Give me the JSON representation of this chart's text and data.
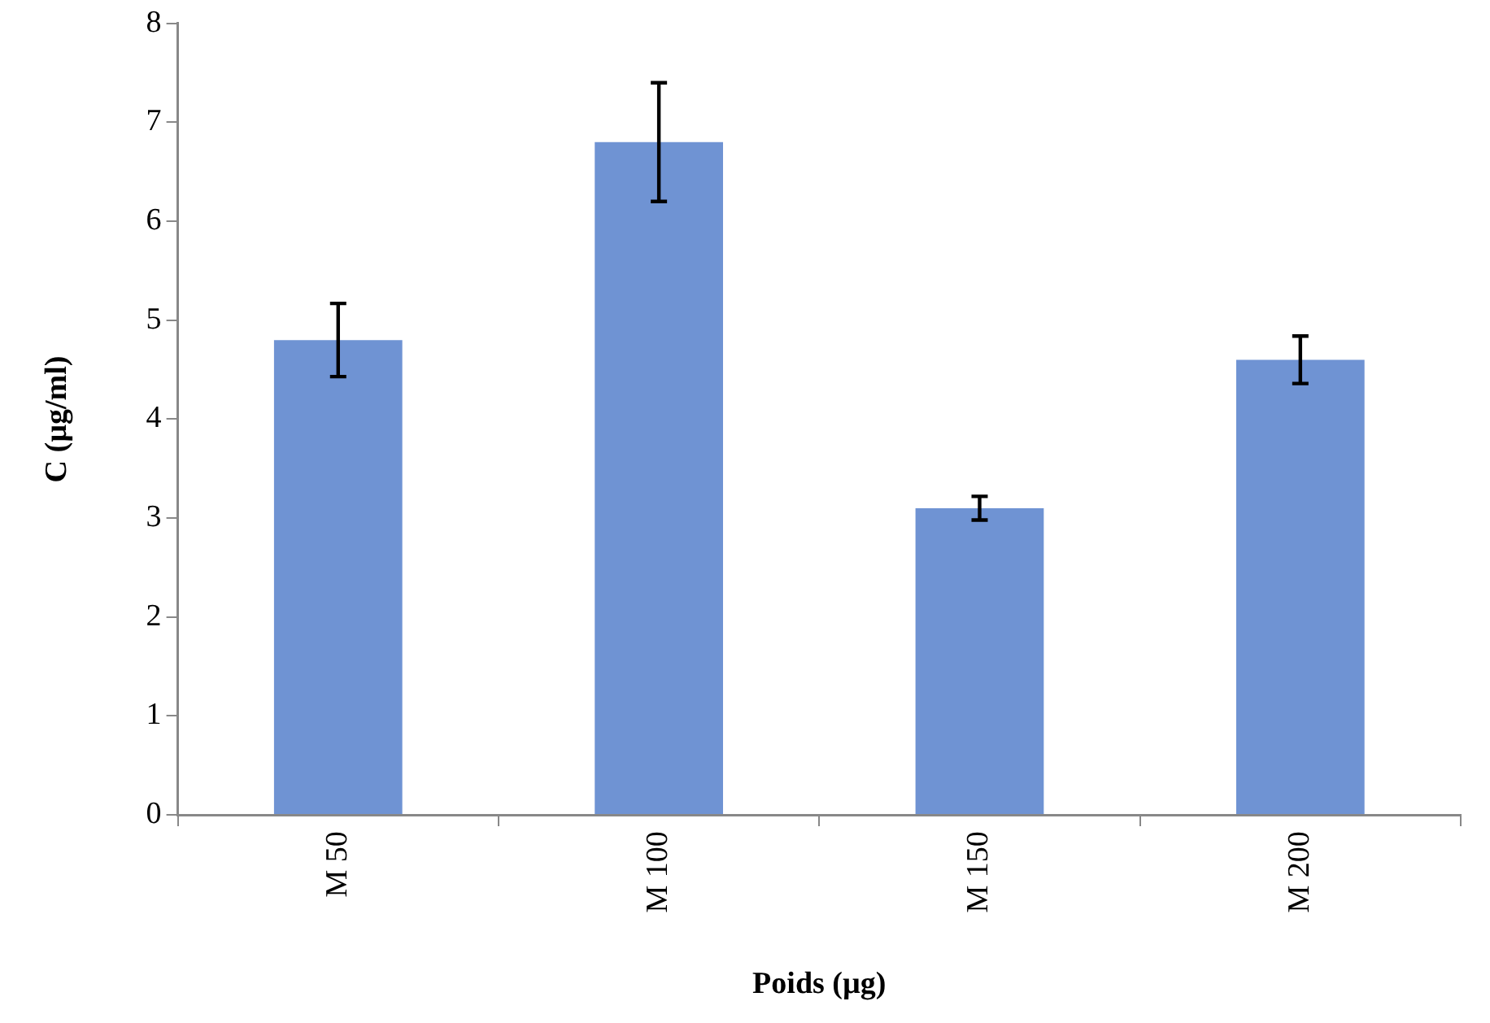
{
  "chart_data": {
    "type": "bar",
    "xlabel": "Poids (µg)",
    "ylabel": "C (µg/ml)",
    "categories": [
      "M 50",
      "M 100",
      "M 150",
      "M 200"
    ],
    "values": [
      4.8,
      6.8,
      3.1,
      4.6
    ],
    "errors": [
      0.37,
      0.6,
      0.12,
      0.24
    ],
    "color": "#6f93d3",
    "ylim": [
      0,
      8
    ],
    "yticks": [
      0,
      1,
      2,
      3,
      4,
      5,
      6,
      7,
      8
    ],
    "grid": false,
    "legend": false
  }
}
